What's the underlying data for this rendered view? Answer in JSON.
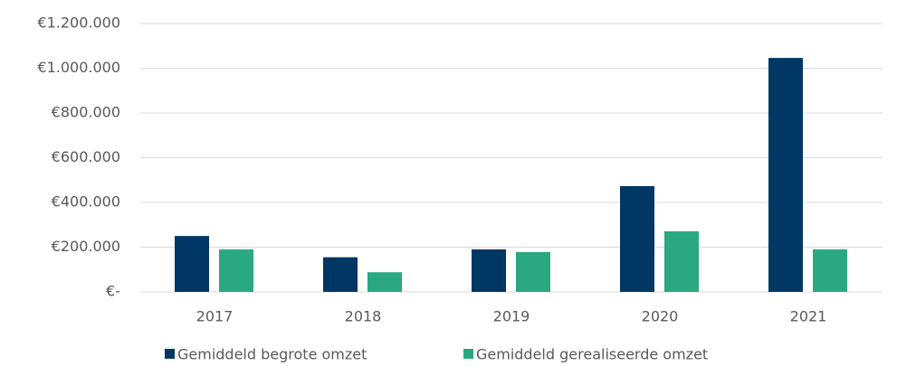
{
  "chart_data": {
    "type": "bar",
    "categories": [
      "2017",
      "2018",
      "2019",
      "2020",
      "2021"
    ],
    "series": [
      {
        "name": "Gemiddeld begrote omzet",
        "color": "#003764",
        "values": [
          250000,
          155000,
          190000,
          473000,
          1046000
        ]
      },
      {
        "name": "Gemiddeld gerealiseerde omzet",
        "color": "#2aa882",
        "values": [
          190000,
          88000,
          178000,
          271000,
          190000
        ]
      }
    ],
    "ylim": [
      0,
      1200000
    ],
    "yticks": [
      {
        "value": 0,
        "label": "€-"
      },
      {
        "value": 200000,
        "label": "€200.000"
      },
      {
        "value": 400000,
        "label": "€400.000"
      },
      {
        "value": 600000,
        "label": "€600.000"
      },
      {
        "value": 800000,
        "label": "€800.000"
      },
      {
        "value": 1000000,
        "label": "€1.000.000"
      },
      {
        "value": 1200000,
        "label": "€1.200.000"
      }
    ],
    "grid": true,
    "legend": "bottom"
  }
}
